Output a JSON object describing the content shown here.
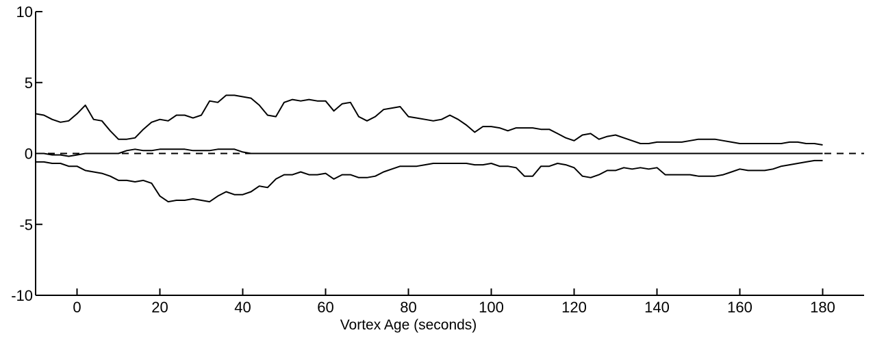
{
  "chart_data": {
    "type": "line",
    "xlabel": "Vortex Age (seconds)",
    "ylabel": "",
    "xlim": [
      -10,
      190
    ],
    "ylim": [
      -10,
      10
    ],
    "x_ticks": [
      0,
      20,
      40,
      60,
      80,
      100,
      120,
      140,
      160,
      180
    ],
    "y_ticks": [
      10,
      5,
      0,
      -5,
      -10
    ],
    "grid": false,
    "legend": "none",
    "line_color": "#000000",
    "series": [
      {
        "style": "solid",
        "x": [
          -10,
          -8,
          -6,
          -4,
          -2,
          0,
          2,
          4,
          6,
          8,
          10,
          12,
          14,
          16,
          18,
          20,
          22,
          24,
          26,
          28,
          30,
          32,
          34,
          36,
          38,
          40,
          42,
          44,
          46,
          48,
          50,
          52,
          54,
          56,
          58,
          60,
          62,
          64,
          66,
          68,
          70,
          72,
          74,
          76,
          78,
          80,
          82,
          84,
          86,
          88,
          90,
          92,
          94,
          96,
          98,
          100,
          102,
          104,
          106,
          108,
          110,
          112,
          114,
          116,
          118,
          120,
          122,
          124,
          126,
          128,
          130,
          132,
          134,
          136,
          138,
          140,
          142,
          144,
          146,
          148,
          150,
          152,
          154,
          156,
          158,
          160,
          162,
          164,
          166,
          168,
          170,
          172,
          174,
          176,
          178,
          180
        ],
        "values": [
          2.8,
          2.7,
          2.4,
          2.2,
          2.3,
          2.8,
          3.4,
          2.4,
          2.3,
          1.6,
          1.0,
          1.0,
          1.1,
          1.7,
          2.2,
          2.4,
          2.3,
          2.7,
          2.7,
          2.5,
          2.7,
          3.7,
          3.6,
          4.1,
          4.1,
          4.0,
          3.9,
          3.4,
          2.7,
          2.6,
          3.6,
          3.8,
          3.7,
          3.8,
          3.7,
          3.7,
          3.0,
          3.5,
          3.6,
          2.6,
          2.3,
          2.6,
          3.1,
          3.2,
          3.3,
          2.6,
          2.5,
          2.4,
          2.3,
          2.4,
          2.7,
          2.4,
          2.0,
          1.5,
          1.9,
          1.9,
          1.8,
          1.6,
          1.8,
          1.8,
          1.8,
          1.7,
          1.7,
          1.4,
          1.1,
          0.9,
          1.3,
          1.4,
          1.0,
          1.2,
          1.3,
          1.1,
          0.9,
          0.7,
          0.7,
          0.8,
          0.8,
          0.8,
          0.8,
          0.9,
          1.0,
          1.0,
          1.0,
          0.9,
          0.8,
          0.7,
          0.7,
          0.7,
          0.7,
          0.7,
          0.7,
          0.8,
          0.8,
          0.7,
          0.7,
          0.6
        ]
      },
      {
        "style": "solid",
        "x": [
          -10,
          -8,
          -6,
          -4,
          -2,
          0,
          2,
          4,
          6,
          8,
          10,
          12,
          14,
          16,
          18,
          20,
          22,
          24,
          26,
          28,
          30,
          32,
          34,
          36,
          38,
          40,
          42,
          44,
          46,
          48,
          50,
          52,
          54,
          56,
          58,
          60,
          62,
          64,
          66,
          68,
          70,
          72,
          74,
          76,
          78,
          80,
          82,
          84,
          86,
          88,
          90,
          92,
          94,
          96,
          98,
          100,
          102,
          104,
          106,
          108,
          110,
          112,
          114,
          116,
          118,
          120,
          122,
          124,
          126,
          128,
          130,
          132,
          134,
          136,
          138,
          140,
          142,
          144,
          146,
          148,
          150,
          152,
          154,
          156,
          158,
          160,
          162,
          164,
          166,
          168,
          170,
          172,
          174,
          176,
          178,
          180
        ],
        "values": [
          0.0,
          0.0,
          -0.1,
          -0.1,
          -0.2,
          -0.1,
          0.0,
          0.0,
          0.0,
          0.0,
          0.0,
          0.2,
          0.3,
          0.2,
          0.2,
          0.3,
          0.3,
          0.3,
          0.3,
          0.2,
          0.2,
          0.2,
          0.3,
          0.3,
          0.3,
          0.1,
          0.0,
          0.0,
          0.0,
          0.0,
          0.0,
          0.0,
          0.0,
          0.0,
          0.0,
          0.0,
          0.0,
          0.0,
          0.0,
          0.0,
          0.0,
          0.0,
          0.0,
          0.0,
          0.0,
          0.0,
          0.0,
          0.0,
          0.0,
          0.0,
          0.0,
          0.0,
          0.0,
          0.0,
          0.0,
          0.0,
          0.0,
          0.0,
          0.0,
          0.0,
          0.0,
          0.0,
          0.0,
          0.0,
          0.0,
          0.0,
          0.0,
          0.0,
          0.0,
          0.0,
          0.0,
          0.0,
          0.0,
          0.0,
          0.0,
          0.0,
          0.0,
          0.0,
          0.0,
          0.0,
          0.0,
          0.0,
          0.0,
          0.0,
          0.0,
          0.0,
          0.0,
          0.0,
          0.0,
          0.0,
          0.0,
          0.0,
          0.0,
          0.0,
          0.0,
          0.0
        ]
      },
      {
        "style": "solid",
        "x": [
          -10,
          -8,
          -6,
          -4,
          -2,
          0,
          2,
          4,
          6,
          8,
          10,
          12,
          14,
          16,
          18,
          20,
          22,
          24,
          26,
          28,
          30,
          32,
          34,
          36,
          38,
          40,
          42,
          44,
          46,
          48,
          50,
          52,
          54,
          56,
          58,
          60,
          62,
          64,
          66,
          68,
          70,
          72,
          74,
          76,
          78,
          80,
          82,
          84,
          86,
          88,
          90,
          92,
          94,
          96,
          98,
          100,
          102,
          104,
          106,
          108,
          110,
          112,
          114,
          116,
          118,
          120,
          122,
          124,
          126,
          128,
          130,
          132,
          134,
          136,
          138,
          140,
          142,
          144,
          146,
          148,
          150,
          152,
          154,
          156,
          158,
          160,
          162,
          164,
          166,
          168,
          170,
          172,
          174,
          176,
          178,
          180
        ],
        "values": [
          -0.6,
          -0.6,
          -0.7,
          -0.7,
          -0.9,
          -0.9,
          -1.2,
          -1.3,
          -1.4,
          -1.6,
          -1.9,
          -1.9,
          -2.0,
          -1.9,
          -2.1,
          -3.0,
          -3.4,
          -3.3,
          -3.3,
          -3.2,
          -3.3,
          -3.4,
          -3.0,
          -2.7,
          -2.9,
          -2.9,
          -2.7,
          -2.3,
          -2.4,
          -1.8,
          -1.5,
          -1.5,
          -1.3,
          -1.5,
          -1.5,
          -1.4,
          -1.8,
          -1.5,
          -1.5,
          -1.7,
          -1.7,
          -1.6,
          -1.3,
          -1.1,
          -0.9,
          -0.9,
          -0.9,
          -0.8,
          -0.7,
          -0.7,
          -0.7,
          -0.7,
          -0.7,
          -0.8,
          -0.8,
          -0.7,
          -0.9,
          -0.9,
          -1.0,
          -1.6,
          -1.6,
          -0.9,
          -0.9,
          -0.7,
          -0.8,
          -1.0,
          -1.6,
          -1.7,
          -1.5,
          -1.2,
          -1.2,
          -1.0,
          -1.1,
          -1.0,
          -1.1,
          -1.0,
          -1.5,
          -1.5,
          -1.5,
          -1.5,
          -1.6,
          -1.6,
          -1.6,
          -1.5,
          -1.3,
          -1.1,
          -1.2,
          -1.2,
          -1.2,
          -1.1,
          -0.9,
          -0.8,
          -0.7,
          -0.6,
          -0.5,
          -0.5
        ]
      },
      {
        "style": "dashed",
        "x": [
          -10,
          190
        ],
        "values": [
          0,
          0
        ]
      }
    ]
  }
}
